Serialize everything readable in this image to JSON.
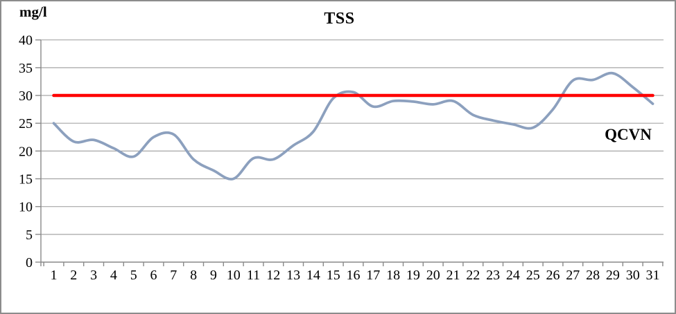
{
  "chart_data": {
    "type": "line",
    "title": "TSS",
    "ylabel": "mg/l",
    "xlabel": "",
    "annotation_label": "QCVN",
    "ylim": [
      0,
      40
    ],
    "yticks": [
      0,
      5,
      10,
      15,
      20,
      25,
      30,
      35,
      40
    ],
    "grid": "horizontal",
    "legend_position": "none",
    "categories": [
      "1",
      "2",
      "3",
      "4",
      "5",
      "6",
      "7",
      "8",
      "9",
      "10",
      "11",
      "12",
      "13",
      "14",
      "15",
      "16",
      "17",
      "18",
      "19",
      "20",
      "21",
      "22",
      "23",
      "24",
      "25",
      "26",
      "27",
      "28",
      "29",
      "30",
      "31"
    ],
    "series": [
      {
        "name": "TSS",
        "color": "#8CA0BE",
        "smooth": true,
        "stroke_width": 3.75,
        "values": [
          25,
          21.7,
          22,
          20.5,
          19,
          22.5,
          23,
          18.5,
          16.5,
          15,
          18.7,
          18.5,
          21,
          23.5,
          29.5,
          30.6,
          28,
          29,
          28.9,
          28.4,
          29,
          26.5,
          25.5,
          24.8,
          24.2,
          27.5,
          32.7,
          32.8,
          34,
          31.5,
          28.5
        ]
      },
      {
        "name": "QCVN",
        "color": "#FF0000",
        "smooth": false,
        "stroke_width": 4.5,
        "values": [
          30,
          30,
          30,
          30,
          30,
          30,
          30,
          30,
          30,
          30,
          30,
          30,
          30,
          30,
          30,
          30,
          30,
          30,
          30,
          30,
          30,
          30,
          30,
          30,
          30,
          30,
          30,
          30,
          30,
          30,
          30
        ]
      }
    ],
    "colors": {
      "background": "#FFFFFF",
      "gridline": "#A6A6A6",
      "axis": "#898989",
      "tick_text": "#000000",
      "border": "#8C8C8C"
    }
  }
}
